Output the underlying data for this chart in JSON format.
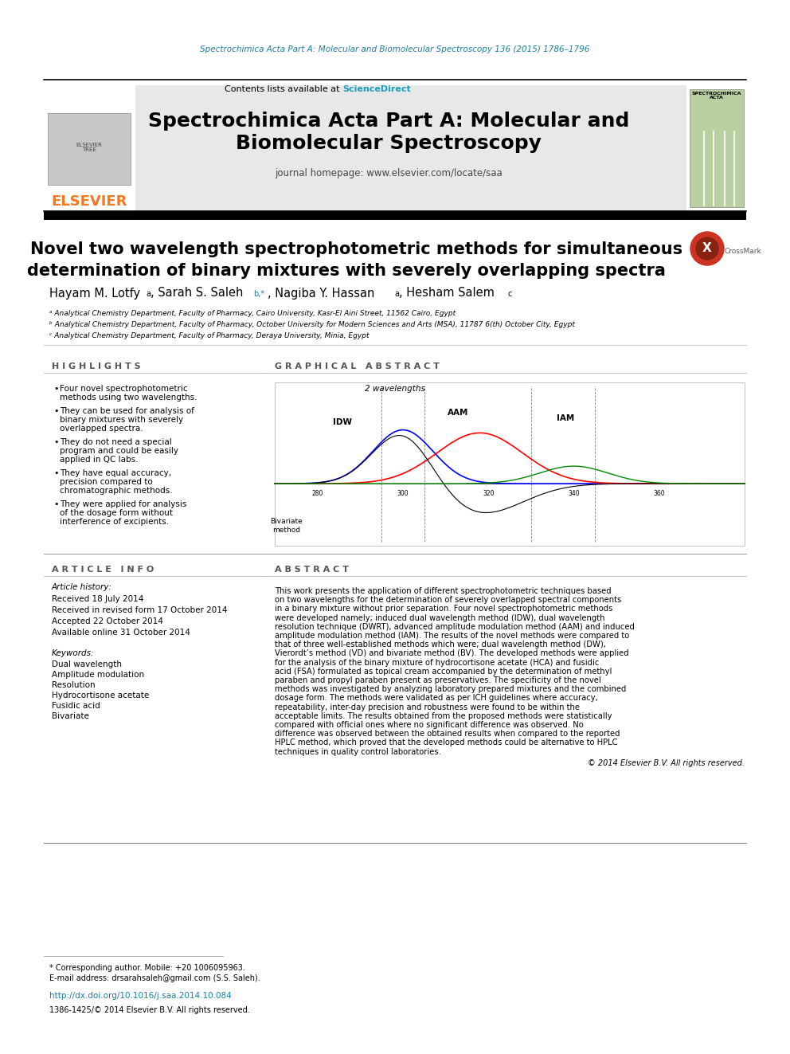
{
  "page_bg": "#ffffff",
  "top_journal_ref": "Spectrochimica Acta Part A: Molecular and Biomolecular Spectroscopy 136 (2015) 1786–1796",
  "top_ref_color": "#1a7fa0",
  "header_bg": "#e8e8e8",
  "journal_title_line1": "Spectrochimica Acta Part A: Molecular and",
  "journal_title_line2": "Biomolecular Spectroscopy",
  "contents_text": "Contents lists available at ",
  "science_direct": "ScienceDirect",
  "science_direct_color": "#1a9fbd",
  "homepage_text": "journal homepage: www.elsevier.com/locate/saa",
  "article_title_line1": "Novel two wavelength spectrophotometric methods for simultaneous",
  "article_title_line2": "determination of binary mixtures with severely overlapping spectra",
  "affil_a": "ᵃ Analytical Chemistry Department, Faculty of Pharmacy, Cairo University, Kasr-El Aini Street, 11562 Cairo, Egypt",
  "affil_b": "ᵇ Analytical Chemistry Department, Faculty of Pharmacy, October University for Modern Sciences and Arts (MSA), 11787 6(th) October City, Egypt",
  "affil_c": "ᶜ Analytical Chemistry Department, Faculty of Pharmacy, Deraya University, Minia, Egypt",
  "highlights_title": "H I G H L I G H T S",
  "highlights": [
    "Four novel spectrophotometric methods using two wavelengths.",
    "They can be used for analysis of binary mixtures with severely overlapped spectra.",
    "They do not need a special program and could be easily applied in QC labs.",
    "They have equal accuracy, precision compared to chromatographic methods.",
    "They were applied for analysis of the dosage form without interference of excipients."
  ],
  "graphical_abstract_title": "G R A P H I C A L   A B S T R A C T",
  "article_info_title": "A R T I C L E   I N F O",
  "article_history_label": "Article history:",
  "received_1": "Received 18 July 2014",
  "received_revised": "Received in revised form 17 October 2014",
  "accepted": "Accepted 22 October 2014",
  "available": "Available online 31 October 2014",
  "keywords_label": "Keywords:",
  "keywords": [
    "Dual wavelength",
    "Amplitude modulation",
    "Resolution",
    "Hydrocortisone acetate",
    "Fusidic acid",
    "Bivariate"
  ],
  "abstract_title": "A B S T R A C T",
  "abstract_text": "This work presents the application of different spectrophotometric techniques based on two wavelengths for the determination of severely overlapped spectral components in a binary mixture without prior separation. Four novel spectrophotometric methods were developed namely; induced dual wavelength method (IDW), dual wavelength resolution technique (DWRT), advanced amplitude modulation method (AAM) and induced amplitude modulation method (IAM). The results of the novel methods were compared to that of three well-established methods which were; dual wavelength method (DW), Vierordt’s method (VD) and bivariate method (BV). The developed methods were applied for the analysis of the binary mixture of hydrocortisone acetate (HCA) and fusidic acid (FSA) formulated as topical cream accompanied by the determination of methyl paraben and propyl paraben present as preservatives. The specificity of the novel methods was investigated by analyzing laboratory prepared mixtures and the combined dosage form. The methods were validated as per ICH guidelines where accuracy, repeatability, inter-day precision and robustness were found to be within the acceptable limits. The results obtained from the proposed methods were statistically compared with official ones where no significant difference was observed. No difference was observed between the obtained results when compared to the reported HPLC method, which proved that the developed methods could be alternative to HPLC techniques in quality control laboratories.",
  "copyright_text": "© 2014 Elsevier B.V. All rights reserved.",
  "footer_text1": "* Corresponding author. Mobile: +20 1006095963.",
  "footer_text2": "E-mail address: drsarahsaleh@gmail.com (S.S. Saleh).",
  "footer_doi": "http://dx.doi.org/10.1016/j.saa.2014.10.084",
  "footer_issn": "1386-1425/© 2014 Elsevier B.V. All rights reserved.",
  "elsevier_color": "#f47920",
  "section_title_color": "#555555"
}
